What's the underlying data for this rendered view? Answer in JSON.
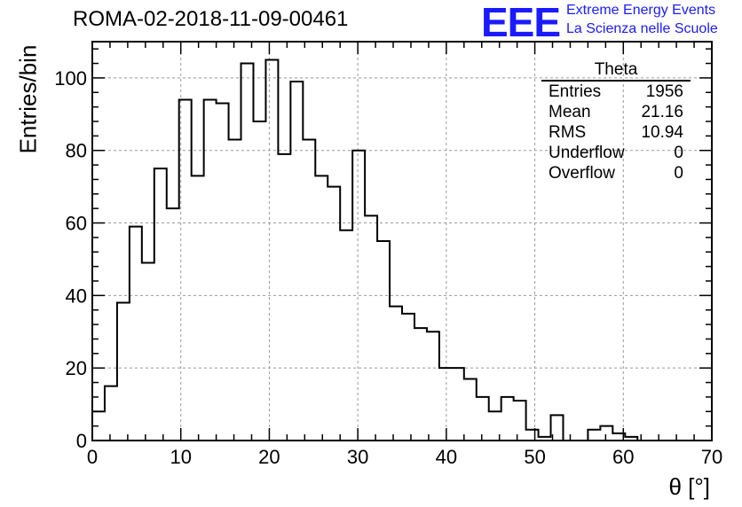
{
  "header": {
    "title": "ROMA-02-2018-11-09-00461",
    "logo_text": "EEE",
    "logo_line1": "Extreme Energy Events",
    "logo_line2": "La Scienza nelle Scuole"
  },
  "stats": {
    "title": "Theta",
    "rows": [
      {
        "label": "Entries",
        "value": "1956"
      },
      {
        "label": "Mean",
        "value": "21.16"
      },
      {
        "label": "RMS",
        "value": "10.94"
      },
      {
        "label": "Underflow",
        "value": "0"
      },
      {
        "label": "Overflow",
        "value": "0"
      }
    ]
  },
  "colors": {
    "accent": "#1a1aff",
    "line": "#000000",
    "grid": "#9a9a9a"
  },
  "chart_data": {
    "type": "histogram",
    "title": "ROMA-02-2018-11-09-00461",
    "xlabel": "θ [°]",
    "ylabel": "Entries/bin",
    "xlim": [
      0,
      70
    ],
    "ylim": [
      0,
      110
    ],
    "bin_width": 1.4,
    "xticks": [
      0,
      10,
      20,
      30,
      40,
      50,
      60,
      70
    ],
    "yticks": [
      0,
      20,
      40,
      60,
      80,
      100
    ],
    "grid": true,
    "values": [
      8,
      15,
      38,
      59,
      49,
      75,
      64,
      94,
      73,
      94,
      93,
      83,
      104,
      88,
      105,
      79,
      99,
      83,
      73,
      70,
      58,
      80,
      62,
      55,
      37,
      35,
      31,
      30,
      20,
      20,
      17,
      12,
      8,
      12,
      11,
      3,
      1,
      7,
      0,
      0,
      3,
      4,
      2,
      1,
      0,
      0,
      0,
      0,
      0,
      0
    ]
  }
}
